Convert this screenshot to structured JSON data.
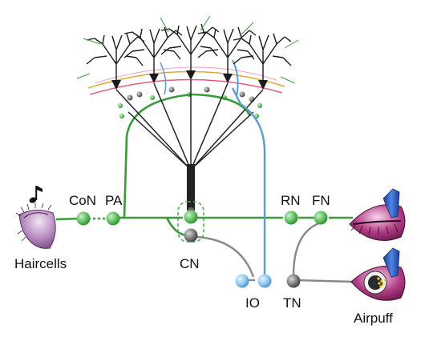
{
  "labels": {
    "haircells": "Haircells",
    "con": "CoN",
    "pa": "PA",
    "cn": "CN",
    "rn": "RN",
    "fn": "FN",
    "io": "IO",
    "tn": "TN",
    "airpuff": "Airpuff"
  },
  "icons": {
    "tone": "music-note-icon"
  },
  "colors": {
    "mossy_fiber": "#3a9b3a",
    "climbing_fiber": "#5b9bd5",
    "purkinje_axon": "#222222",
    "inhibitory": "#888888",
    "node_green": "#6cc36c",
    "node_blue": "#8ec5ef",
    "node_gray": "#7a7a7a"
  }
}
